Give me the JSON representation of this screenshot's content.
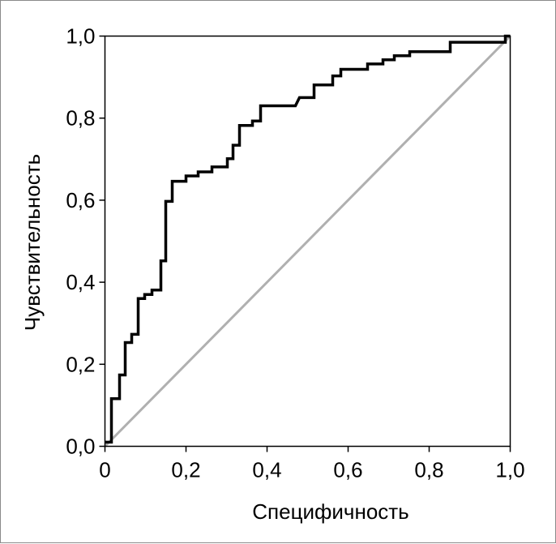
{
  "chart_data": {
    "type": "line",
    "xlabel": "Специфичность",
    "ylabel": "Чувствительность",
    "xlim": [
      0,
      1
    ],
    "ylim": [
      0,
      1
    ],
    "x_ticks": [
      "0",
      "0,2",
      "0,4",
      "0,6",
      "0,8",
      "1,0"
    ],
    "y_ticks": [
      "0,0",
      "0,2",
      "0,4",
      "0,6",
      "0,8",
      "1,0"
    ],
    "grid": false,
    "legend": "none",
    "series": [
      {
        "style": "step",
        "color": "#000000",
        "points": [
          [
            0.0,
            0.01
          ],
          [
            0.016,
            0.01
          ],
          [
            0.016,
            0.116
          ],
          [
            0.036,
            0.116
          ],
          [
            0.036,
            0.174
          ],
          [
            0.05,
            0.174
          ],
          [
            0.05,
            0.253
          ],
          [
            0.066,
            0.253
          ],
          [
            0.066,
            0.273
          ],
          [
            0.082,
            0.273
          ],
          [
            0.082,
            0.36
          ],
          [
            0.098,
            0.36
          ],
          [
            0.098,
            0.37
          ],
          [
            0.116,
            0.37
          ],
          [
            0.116,
            0.381
          ],
          [
            0.138,
            0.381
          ],
          [
            0.138,
            0.452
          ],
          [
            0.15,
            0.452
          ],
          [
            0.15,
            0.597
          ],
          [
            0.166,
            0.597
          ],
          [
            0.166,
            0.646
          ],
          [
            0.2,
            0.646
          ],
          [
            0.2,
            0.659
          ],
          [
            0.23,
            0.659
          ],
          [
            0.23,
            0.669
          ],
          [
            0.264,
            0.669
          ],
          [
            0.264,
            0.681
          ],
          [
            0.302,
            0.681
          ],
          [
            0.302,
            0.701
          ],
          [
            0.316,
            0.701
          ],
          [
            0.316,
            0.734
          ],
          [
            0.332,
            0.734
          ],
          [
            0.332,
            0.782
          ],
          [
            0.364,
            0.782
          ],
          [
            0.364,
            0.793
          ],
          [
            0.384,
            0.793
          ],
          [
            0.384,
            0.83
          ],
          [
            0.47,
            0.83
          ],
          [
            0.48,
            0.85
          ],
          [
            0.516,
            0.85
          ],
          [
            0.516,
            0.881
          ],
          [
            0.562,
            0.881
          ],
          [
            0.562,
            0.903
          ],
          [
            0.582,
            0.903
          ],
          [
            0.582,
            0.919
          ],
          [
            0.648,
            0.919
          ],
          [
            0.648,
            0.932
          ],
          [
            0.686,
            0.932
          ],
          [
            0.686,
            0.942
          ],
          [
            0.714,
            0.942
          ],
          [
            0.714,
            0.952
          ],
          [
            0.752,
            0.952
          ],
          [
            0.752,
            0.962
          ],
          [
            0.852,
            0.962
          ],
          [
            0.852,
            0.985
          ],
          [
            0.988,
            0.985
          ],
          [
            0.988,
            1.0
          ],
          [
            1.0,
            1.0
          ]
        ]
      },
      {
        "style": "diagonal",
        "color": "#b0b0b0",
        "points": [
          [
            0,
            0
          ],
          [
            1,
            1
          ]
        ]
      }
    ]
  }
}
